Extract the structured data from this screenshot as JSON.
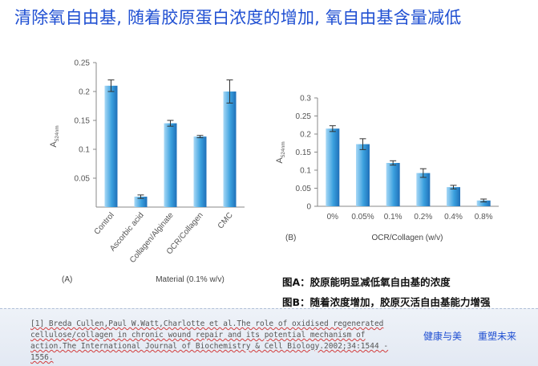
{
  "title": "清除氧自由基, 随着胶原蛋白浓度的增加, 氧自由基含量减低",
  "chart_data": [
    {
      "type": "bar",
      "panel_label": "(A)",
      "xlabel": "Material (0.1% w/v)",
      "ylabel": "A",
      "ylabel_sub": "524nm",
      "categories": [
        "Control",
        "Ascorbic acid",
        "Collagen/Alginate",
        "OCR/Collagen",
        "CMC"
      ],
      "values": [
        0.21,
        0.018,
        0.145,
        0.122,
        0.2
      ],
      "errors": [
        0.01,
        0.003,
        0.005,
        0.002,
        0.02
      ],
      "yticks": [
        0.05,
        0.1,
        0.15,
        0.2,
        0.25
      ],
      "ytick_labels": [
        "0.05",
        "0.1",
        "0.15",
        "0.2",
        "0.25"
      ],
      "ylim": [
        0,
        0.25
      ],
      "bar_color": "#3aa0de"
    },
    {
      "type": "bar",
      "panel_label": "(B)",
      "xlabel": "OCR/Collagen (w/v)",
      "ylabel": "A",
      "ylabel_sub": "524nm",
      "categories": [
        "0%",
        "0.05%",
        "0.1%",
        "0.2%",
        "0.4%",
        "0.8%"
      ],
      "values": [
        0.215,
        0.172,
        0.12,
        0.092,
        0.053,
        0.016
      ],
      "errors": [
        0.008,
        0.015,
        0.006,
        0.012,
        0.005,
        0.004
      ],
      "yticks": [
        0,
        0.05,
        0.1,
        0.15,
        0.2,
        0.25,
        0.3
      ],
      "ytick_labels": [
        "0",
        "0.05",
        "0.1",
        "0.15",
        "0.2",
        "0.25",
        "0.3"
      ],
      "ylim": [
        0,
        0.3
      ],
      "bar_color": "#3aa0de"
    }
  ],
  "notes": {
    "a": "图A：胶原能明显减低氧自由基的浓度",
    "b": "图B：随着浓度增加，胶原灭活自由基能力增强"
  },
  "reference": {
    "text": "[1] Breda Cullen,Paul W.Watt,Charlotte et al.The role of oxidised regenerated cellulose/collagen in chronic wound repair and its potential mechanism of action.The International Journal of Biochemistry & Cell Biology.2002;34:1544 - 1556."
  },
  "brand": {
    "left": "健康与美",
    "right": "重塑未来",
    "color": "#1f4fd2"
  }
}
